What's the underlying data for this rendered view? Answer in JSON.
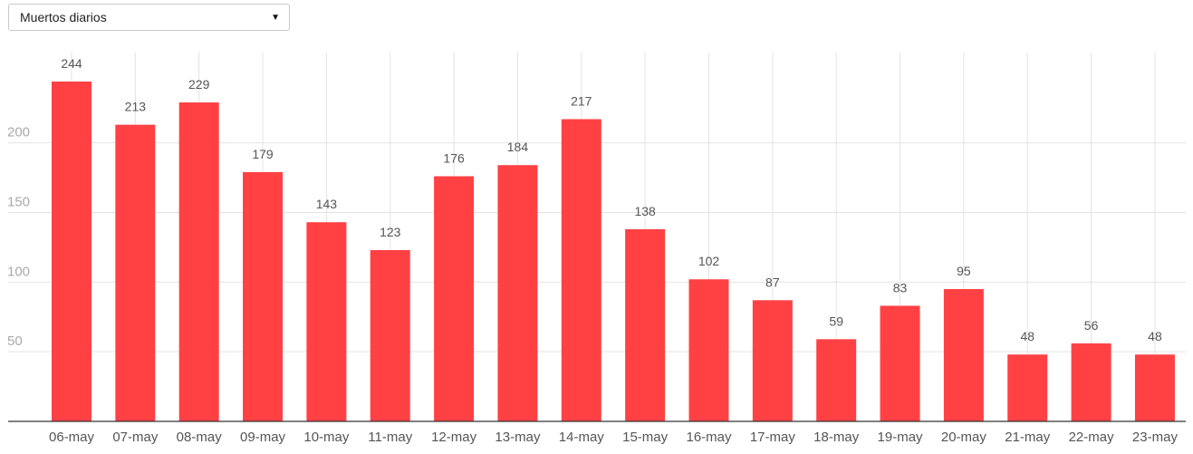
{
  "selector": {
    "value": "Muertos diarios"
  },
  "colors": {
    "bar": "#ff4144",
    "gridline": "#e3e3e3",
    "axis": "#333333",
    "y_tick_text": "#aaaaaa",
    "x_tick_text": "#555555",
    "data_label_text": "#555555"
  },
  "chart_data": {
    "type": "bar",
    "title": "",
    "xlabel": "",
    "ylabel": "",
    "categories": [
      "06-may",
      "07-may",
      "08-may",
      "09-may",
      "10-may",
      "11-may",
      "12-may",
      "13-may",
      "14-may",
      "15-may",
      "16-may",
      "17-may",
      "18-may",
      "19-may",
      "20-may",
      "21-may",
      "22-may",
      "23-may"
    ],
    "values": [
      244,
      213,
      229,
      179,
      143,
      123,
      176,
      184,
      217,
      138,
      102,
      87,
      59,
      83,
      95,
      48,
      56,
      48
    ],
    "y_ticks": [
      50,
      100,
      150,
      200
    ],
    "ylim": [
      0,
      262
    ],
    "grid": true,
    "data_labels": true
  }
}
